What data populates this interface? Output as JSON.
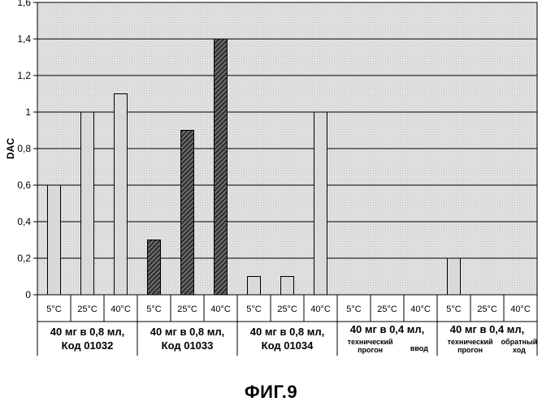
{
  "caption": "ФИГ.9",
  "chart_data": {
    "type": "bar",
    "ylabel": "DAC",
    "ylim": [
      0,
      1.6
    ],
    "yticks": [
      "0",
      "0,2",
      "0,4",
      "0,6",
      "0,8",
      "1",
      "1,2",
      "1,4",
      "1,6"
    ],
    "grid": true,
    "categories": [
      "5°C",
      "25°C",
      "40°C",
      "5°C",
      "25°C",
      "40°C",
      "5°C",
      "25°C",
      "40°C",
      "5°C",
      "25°C",
      "40°C",
      "5°C",
      "25°C",
      "40°C"
    ],
    "values": [
      0.6,
      1.0,
      1.1,
      0.3,
      0.9,
      1.4,
      0.1,
      0.1,
      1.0,
      0,
      0,
      0,
      0.2,
      0,
      0
    ],
    "groups": [
      {
        "lines": [
          "40 мг в 0,8 мл,",
          "Код 01032"
        ],
        "style": "light"
      },
      {
        "lines": [
          "40 мг в 0,8 мл,",
          "Код 01033"
        ],
        "style": "hatch"
      },
      {
        "lines": [
          "40 мг в 0,8 мл,",
          "Код 01034"
        ],
        "style": "light"
      },
      {
        "title": "40 мг в 0,4 мл,",
        "left": [
          "технический",
          "прогон"
        ],
        "right": [
          "ввод"
        ],
        "style": "light"
      },
      {
        "title": "40 мг в 0,4 мл,",
        "left": [
          "технический",
          "прогон"
        ],
        "right": [
          "обратный",
          "ход"
        ],
        "style": "light"
      }
    ]
  }
}
